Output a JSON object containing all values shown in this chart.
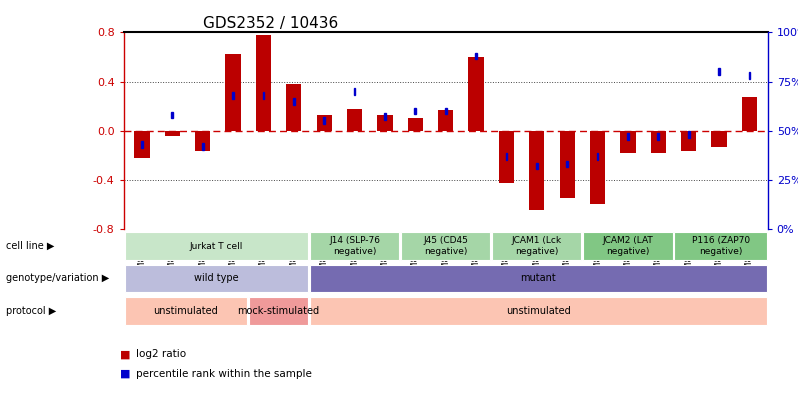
{
  "title": "GDS2352 / 10436",
  "samples": [
    "GSM89762",
    "GSM89765",
    "GSM89767",
    "GSM89759",
    "GSM89760",
    "GSM89764",
    "GSM89753",
    "GSM89755",
    "GSM89771",
    "GSM89756",
    "GSM89757",
    "GSM89758",
    "GSM89761",
    "GSM89763",
    "GSM89773",
    "GSM89766",
    "GSM89768",
    "GSM89770",
    "GSM89754",
    "GSM89769",
    "GSM89772"
  ],
  "log2_ratio": [
    -0.22,
    -0.04,
    -0.17,
    0.62,
    0.78,
    0.38,
    0.13,
    0.18,
    0.13,
    0.1,
    0.17,
    0.6,
    -0.43,
    -0.65,
    -0.55,
    -0.6,
    -0.18,
    -0.18,
    -0.17,
    -0.13,
    0.27
  ],
  "percentile": [
    43,
    58,
    42,
    68,
    68,
    65,
    55,
    70,
    57,
    60,
    60,
    88,
    37,
    32,
    33,
    37,
    47,
    47,
    48,
    80,
    78
  ],
  "yticks": [
    -0.8,
    -0.4,
    0.0,
    0.4,
    0.8
  ],
  "pct_ticks": [
    0,
    25,
    50,
    75,
    100
  ],
  "cell_line_groups": [
    {
      "label": "Jurkat T cell",
      "start": 0,
      "end": 6,
      "color": "#c8e6c9"
    },
    {
      "label": "J14 (SLP-76\nnegative)",
      "start": 6,
      "end": 9,
      "color": "#a5d6a7"
    },
    {
      "label": "J45 (CD45\nnegative)",
      "start": 9,
      "end": 12,
      "color": "#a5d6a7"
    },
    {
      "label": "JCAM1 (Lck\nnegative)",
      "start": 12,
      "end": 15,
      "color": "#a5d6a7"
    },
    {
      "label": "JCAM2 (LAT\nnegative)",
      "start": 15,
      "end": 18,
      "color": "#81c784"
    },
    {
      "label": "P116 (ZAP70\nnegative)",
      "start": 18,
      "end": 21,
      "color": "#81c784"
    }
  ],
  "genotype_groups": [
    {
      "label": "wild type",
      "start": 0,
      "end": 6,
      "color": "#bcbddc"
    },
    {
      "label": "mutant",
      "start": 6,
      "end": 21,
      "color": "#756bb1"
    }
  ],
  "protocol_groups": [
    {
      "label": "unstimulated",
      "start": 0,
      "end": 4,
      "color": "#fcc5b3"
    },
    {
      "label": "mock-stimulated",
      "start": 4,
      "end": 6,
      "color": "#ef9a9a"
    },
    {
      "label": "unstimulated",
      "start": 6,
      "end": 21,
      "color": "#fcc5b3"
    }
  ],
  "bar_color": "#bb0000",
  "square_color": "#0000cc",
  "zero_line_color": "#cc0000",
  "left_axis_color": "#cc0000",
  "right_axis_color": "#0000cc",
  "row_labels": [
    "cell line",
    "genotype/variation",
    "protocol"
  ],
  "legend_items": [
    "log2 ratio",
    "percentile rank within the sample"
  ]
}
